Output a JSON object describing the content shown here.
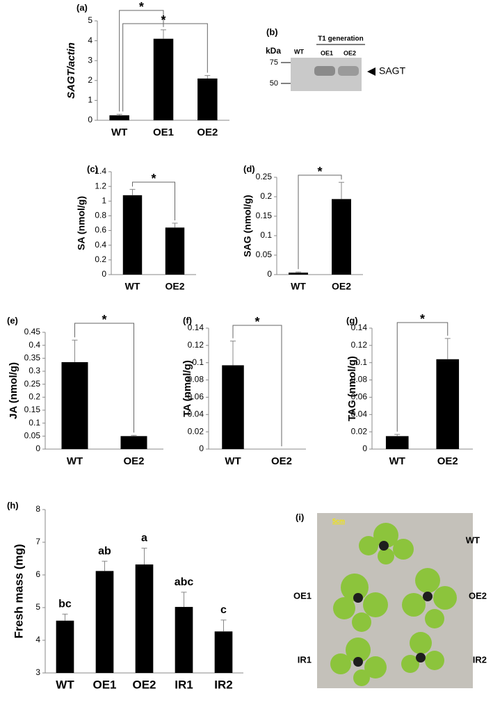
{
  "chart_data": [
    {
      "type": "bar",
      "label": "(a)",
      "ylabel": "SAGT/actin",
      "categories": [
        "WT",
        "OE1",
        "OE2"
      ],
      "values": [
        0.25,
        4.1,
        2.1
      ],
      "errors": [
        0.05,
        0.45,
        0.15
      ],
      "color": "#000000",
      "ylim": [
        0,
        5
      ],
      "yticks": [
        0,
        1,
        2,
        3,
        4,
        5
      ],
      "annotations": [
        "*",
        "*"
      ]
    },
    {
      "type": "bar",
      "label": "(c)",
      "ylabel": "SA (nmol/g)",
      "categories": [
        "WT",
        "OE2"
      ],
      "values": [
        1.08,
        0.64
      ],
      "errors": [
        0.08,
        0.06
      ],
      "color": "#000000",
      "ylim": [
        0,
        1.4
      ],
      "yticks": [
        0,
        0.2,
        0.4,
        0.6,
        0.8,
        1,
        1.2,
        1.4
      ],
      "annotations": [
        "*"
      ]
    },
    {
      "type": "bar",
      "label": "(d)",
      "ylabel": "SAG (nmol/g)",
      "categories": [
        "WT",
        "OE2"
      ],
      "values": [
        0.005,
        0.194
      ],
      "errors": [
        0.002,
        0.043
      ],
      "color": "#000000",
      "ylim": [
        0,
        0.25
      ],
      "yticks": [
        0,
        0.05,
        0.1,
        0.15,
        0.2,
        0.25
      ],
      "annotations": [
        "*"
      ]
    },
    {
      "type": "bar",
      "label": "(e)",
      "ylabel": "JA (nmol/g)",
      "categories": [
        "WT",
        "OE2"
      ],
      "values": [
        0.335,
        0.05
      ],
      "errors": [
        0.085,
        0.003
      ],
      "color": "#000000",
      "ylim": [
        0,
        0.45
      ],
      "yticks": [
        0,
        0.05,
        0.1,
        0.15,
        0.2,
        0.25,
        0.3,
        0.35,
        0.4,
        0.45
      ],
      "annotations": [
        "*"
      ]
    },
    {
      "type": "bar",
      "label": "(f)",
      "ylabel": "TA (nmol/g)",
      "categories": [
        "WT",
        "OE2"
      ],
      "values": [
        0.097,
        0
      ],
      "errors": [
        0.028,
        0
      ],
      "color": "#000000",
      "ylim": [
        0,
        0.14
      ],
      "yticks": [
        0,
        0.02,
        0.04,
        0.06,
        0.08,
        0.1,
        0.12,
        0.14
      ],
      "annotations": [
        "*"
      ]
    },
    {
      "type": "bar",
      "label": "(g)",
      "ylabel": "TAG (nmol/g)",
      "categories": [
        "WT",
        "OE2"
      ],
      "values": [
        0.015,
        0.104
      ],
      "errors": [
        0.002,
        0.024
      ],
      "color": "#000000",
      "ylim": [
        0,
        0.14
      ],
      "yticks": [
        0,
        0.02,
        0.04,
        0.06,
        0.08,
        0.1,
        0.12,
        0.14
      ],
      "annotations": [
        "*"
      ]
    },
    {
      "type": "bar",
      "label": "(h)",
      "ylabel": "Fresh mass (mg)",
      "categories": [
        "WT",
        "OE1",
        "OE2",
        "IR1",
        "IR2"
      ],
      "values": [
        4.6,
        6.12,
        6.32,
        5.02,
        4.27
      ],
      "errors": [
        0.2,
        0.3,
        0.5,
        0.45,
        0.35
      ],
      "color": "#000000",
      "ylim": [
        3,
        8
      ],
      "yticks": [
        3,
        4,
        5,
        6,
        7,
        8
      ],
      "bar_labels": [
        "bc",
        "ab",
        "a",
        "abc",
        "c"
      ]
    }
  ],
  "blot": {
    "label": "(b)",
    "title": "T1 generation",
    "unit": "kDa",
    "lanes": [
      "WT",
      "OE1",
      "OE2"
    ],
    "markers": [
      "75",
      "50"
    ],
    "band": "SAGT"
  },
  "photo": {
    "label": "(i)",
    "scale": "5cm",
    "lines": [
      "WT",
      "OE1",
      "OE2",
      "IR1",
      "IR2"
    ]
  }
}
